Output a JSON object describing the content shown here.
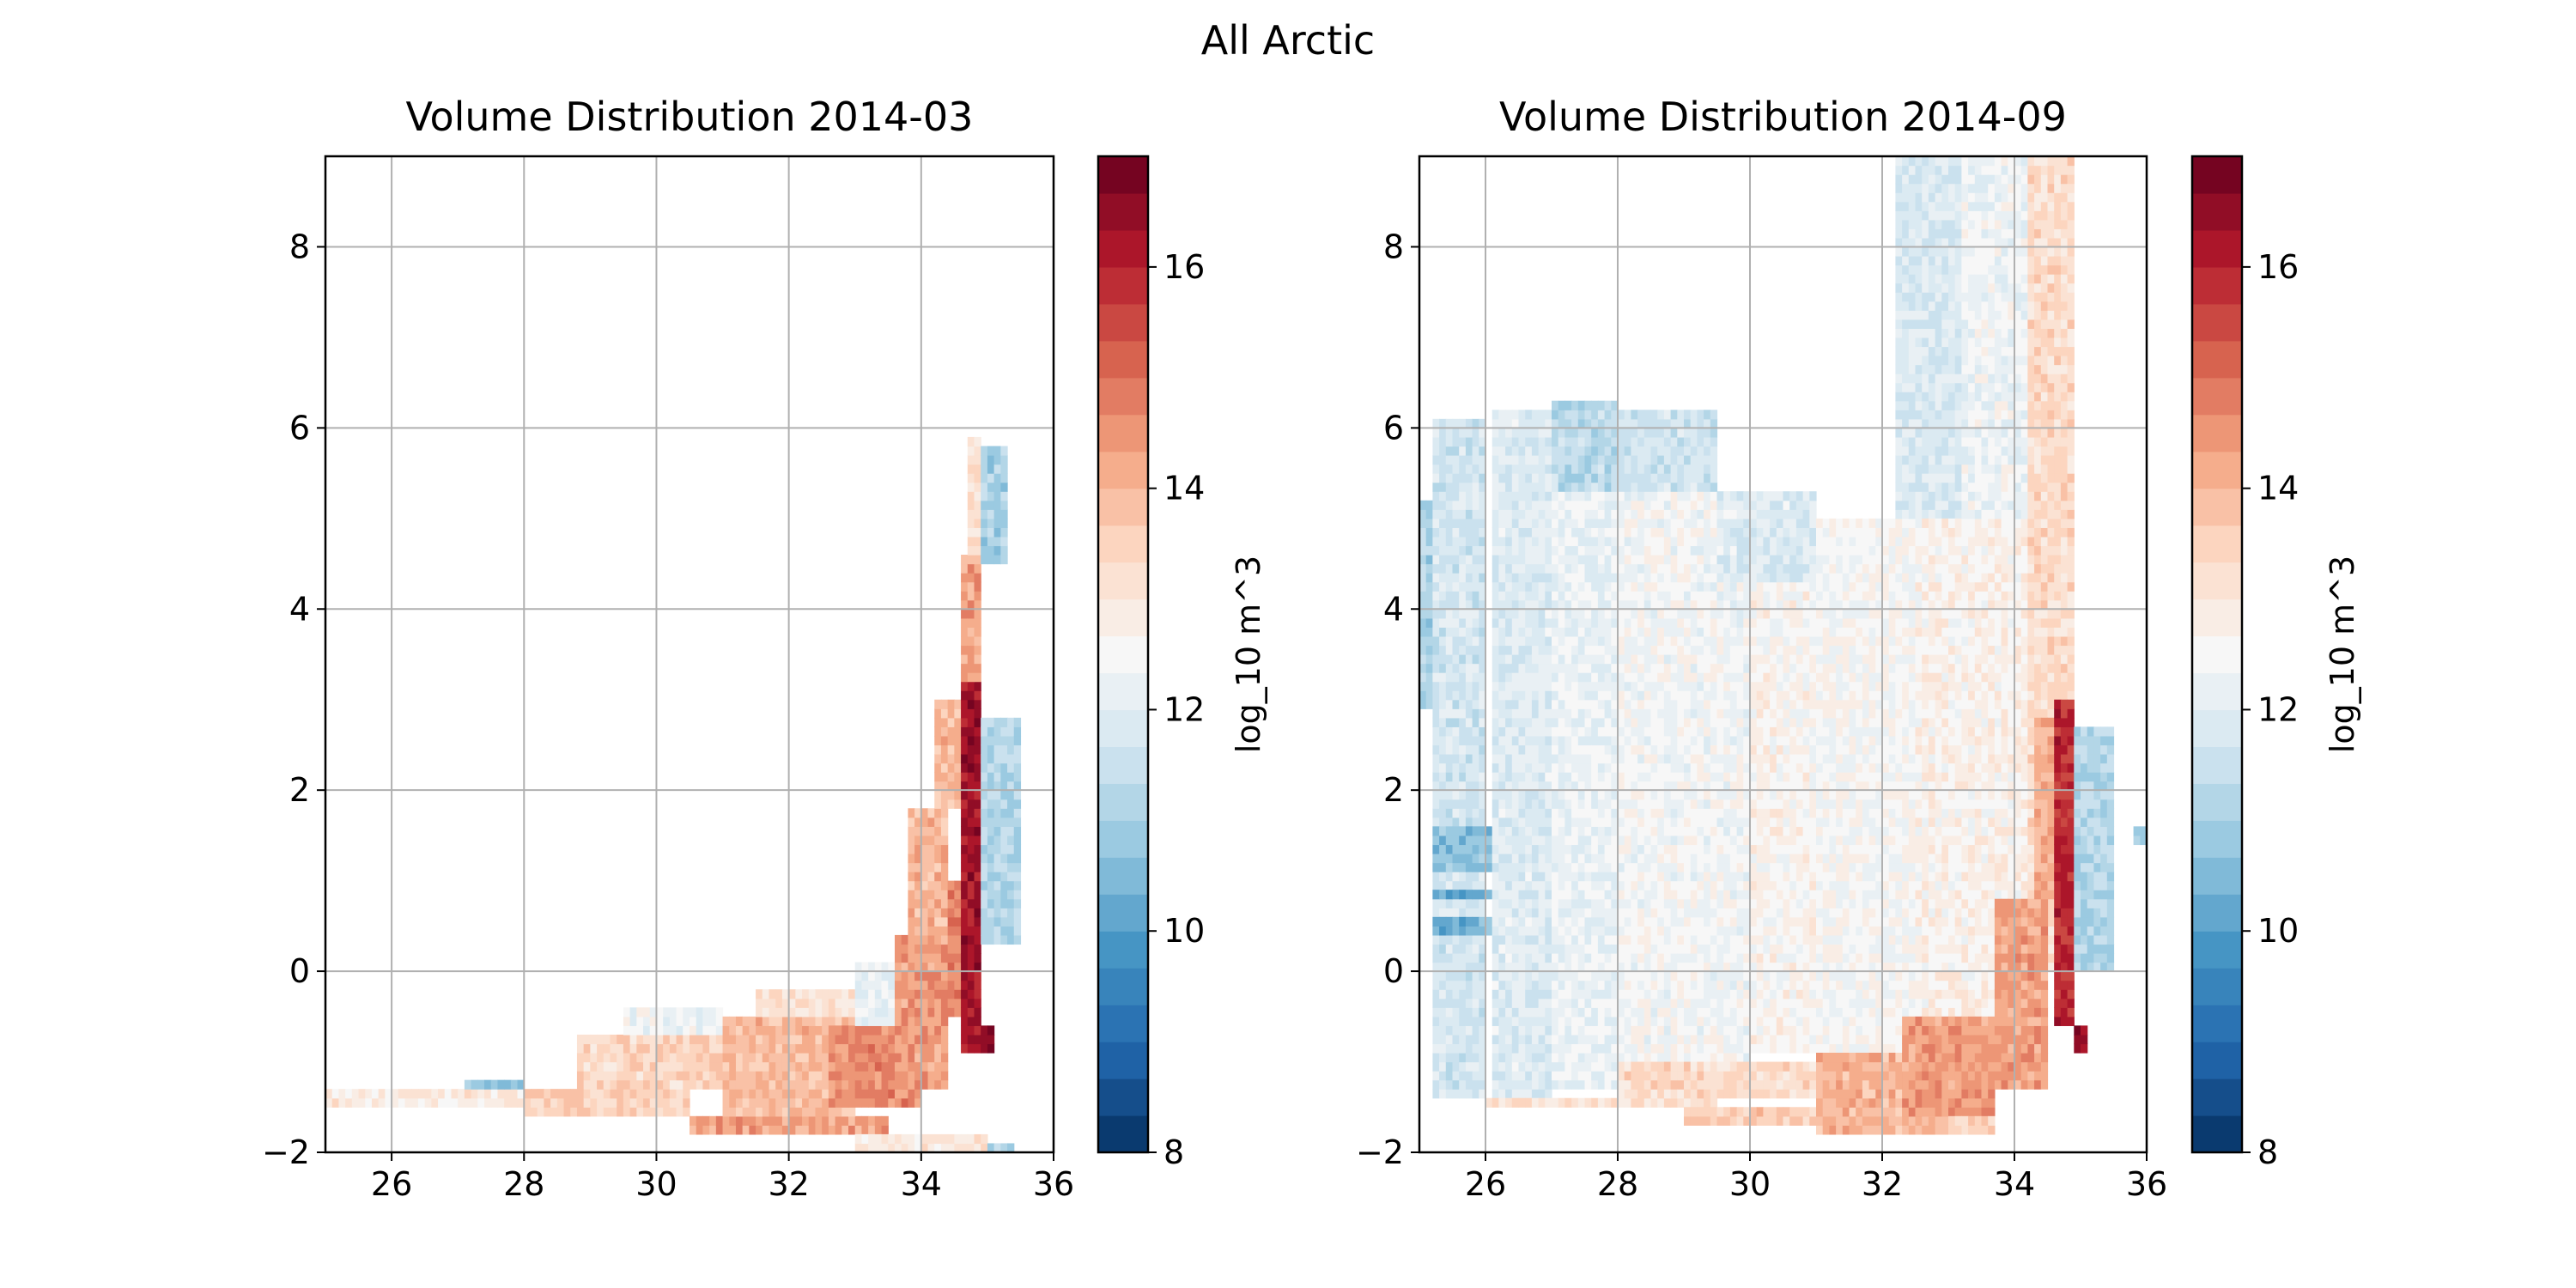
{
  "figure": {
    "suptitle": "All Arctic"
  },
  "colorbar": {
    "label": "log_10 m^3",
    "ticks": [
      8,
      10,
      12,
      14,
      16
    ],
    "range": [
      8,
      17
    ],
    "levels": 27,
    "colormap": "RdBu_r"
  },
  "chart_data": [
    {
      "type": "heatmap",
      "title": "Volume Distribution 2014-03",
      "xlabel": "",
      "ylabel": "",
      "xlim": [
        25,
        36
      ],
      "ylim": [
        -2,
        9
      ],
      "xticks": [
        26,
        28,
        30,
        32,
        34,
        36
      ],
      "yticks": [
        -2,
        0,
        2,
        4,
        6,
        8
      ],
      "grid": true,
      "colorbar_label": "log_10 m^3",
      "cell_size": {
        "x": 0.1,
        "y": 0.1
      },
      "regions": [
        {
          "x": [
            25.0,
            28.9
          ],
          "y": [
            -1.5,
            -1.35
          ],
          "value": 12.9
        },
        {
          "x": [
            27.1,
            28.0
          ],
          "y": [
            -1.35,
            -1.22
          ],
          "value": 10.7
        },
        {
          "x": [
            28.0,
            30.5
          ],
          "y": [
            -1.65,
            -1.3
          ],
          "value": 13.5
        },
        {
          "x": [
            28.8,
            31.0
          ],
          "y": [
            -1.3,
            -0.7
          ],
          "value": 13.4
        },
        {
          "x": [
            29.5,
            31.0
          ],
          "y": [
            -0.7,
            -0.45
          ],
          "value": 12.3
        },
        {
          "x": [
            30.5,
            33.5
          ],
          "y": [
            -1.85,
            -1.6
          ],
          "value": 14.3
        },
        {
          "x": [
            31.0,
            33.0
          ],
          "y": [
            -1.6,
            -0.55
          ],
          "value": 13.9
        },
        {
          "x": [
            31.5,
            33.5
          ],
          "y": [
            -0.55,
            -0.2
          ],
          "value": 13.2
        },
        {
          "x": [
            32.6,
            34.0
          ],
          "y": [
            -1.5,
            -0.6
          ],
          "value": 14.6
        },
        {
          "x": [
            33.0,
            33.6
          ],
          "y": [
            -0.6,
            0.05
          ],
          "value": 12.1
        },
        {
          "x": [
            33.6,
            34.4
          ],
          "y": [
            -1.3,
            0.4
          ],
          "value": 14.4
        },
        {
          "x": [
            33.8,
            34.4
          ],
          "y": [
            0.4,
            1.8
          ],
          "value": 14.0
        },
        {
          "x": [
            34.2,
            34.7
          ],
          "y": [
            1.8,
            3.0
          ],
          "value": 13.9
        },
        {
          "x": [
            34.4,
            34.6
          ],
          "y": [
            -0.5,
            1.0
          ],
          "value": 14.8
        },
        {
          "x": [
            34.6,
            34.9
          ],
          "y": [
            -0.9,
            3.2
          ],
          "value": 16.3
        },
        {
          "x": [
            34.9,
            35.1
          ],
          "y": [
            -0.95,
            -0.6
          ],
          "value": 16.6
        },
        {
          "x": [
            34.6,
            34.9
          ],
          "y": [
            3.2,
            4.6
          ],
          "value": 14.3
        },
        {
          "x": [
            34.7,
            34.9
          ],
          "y": [
            4.6,
            5.9
          ],
          "value": 13.2
        },
        {
          "x": [
            33.0,
            35.0
          ],
          "y": [
            -1.98,
            -1.85
          ],
          "value": 13.0
        },
        {
          "x": [
            35.0,
            35.4
          ],
          "y": [
            -2.0,
            -1.9
          ],
          "value": 11.2
        },
        {
          "x": [
            34.9,
            35.5
          ],
          "y": [
            0.3,
            2.8
          ],
          "value": 11.2
        },
        {
          "x": [
            34.9,
            35.3
          ],
          "y": [
            4.5,
            5.8
          ],
          "value": 11.0
        }
      ]
    },
    {
      "type": "heatmap",
      "title": "Volume Distribution 2014-09",
      "xlabel": "",
      "ylabel": "",
      "xlim": [
        25,
        36
      ],
      "ylim": [
        -2,
        9
      ],
      "xticks": [
        26,
        28,
        30,
        32,
        34,
        36
      ],
      "yticks": [
        -2,
        0,
        2,
        4,
        6,
        8
      ],
      "grid": true,
      "colorbar_label": "log_10 m^3",
      "cell_size": {
        "x": 0.1,
        "y": 0.1
      },
      "regions": [
        {
          "x": [
            25.0,
            25.2
          ],
          "y": [
            2.9,
            5.2
          ],
          "value": 11.1
        },
        {
          "x": [
            25.2,
            26.0
          ],
          "y": [
            -1.4,
            6.1
          ],
          "value": 11.7
        },
        {
          "x": [
            25.2,
            26.1
          ],
          "y": [
            1.1,
            1.65
          ],
          "value": 10.6
        },
        {
          "x": [
            25.2,
            26.1
          ],
          "y": [
            0.75,
            0.95
          ],
          "value": 10.3
        },
        {
          "x": [
            25.2,
            26.1
          ],
          "y": [
            0.4,
            0.55
          ],
          "value": 10.4
        },
        {
          "x": [
            26.1,
            27.0
          ],
          "y": [
            -1.4,
            6.2
          ],
          "value": 11.9
        },
        {
          "x": [
            27.0,
            28.0
          ],
          "y": [
            -1.3,
            6.3
          ],
          "value": 12.2
        },
        {
          "x": [
            27.0,
            28.0
          ],
          "y": [
            5.3,
            6.3
          ],
          "value": 11.3
        },
        {
          "x": [
            28.0,
            30.0
          ],
          "y": [
            -1.0,
            5.3
          ],
          "value": 12.4
        },
        {
          "x": [
            28.0,
            29.5
          ],
          "y": [
            5.3,
            6.2
          ],
          "value": 11.6
        },
        {
          "x": [
            30.0,
            31.5
          ],
          "y": [
            -0.9,
            4.3
          ],
          "value": 12.6
        },
        {
          "x": [
            29.5,
            31.0
          ],
          "y": [
            4.3,
            5.3
          ],
          "value": 11.9
        },
        {
          "x": [
            31.0,
            32.5
          ],
          "y": [
            -1.0,
            5.0
          ],
          "value": 12.5
        },
        {
          "x": [
            32.2,
            33.2
          ],
          "y": [
            5.0,
            9.0
          ],
          "value": 11.8
        },
        {
          "x": [
            32.5,
            34.2
          ],
          "y": [
            -0.6,
            5.0
          ],
          "value": 12.7
        },
        {
          "x": [
            33.2,
            34.5
          ],
          "y": [
            5.0,
            9.0
          ],
          "value": 12.3
        },
        {
          "x": [
            34.2,
            34.9
          ],
          "y": [
            0.0,
            9.0
          ],
          "value": 13.3
        },
        {
          "x": [
            26.0,
            29.5
          ],
          "y": [
            -1.55,
            -1.4
          ],
          "value": 13.2
        },
        {
          "x": [
            28.0,
            31.0
          ],
          "y": [
            -1.4,
            -1.05
          ],
          "value": 13.3
        },
        {
          "x": [
            29.0,
            31.5
          ],
          "y": [
            -1.75,
            -1.55
          ],
          "value": 13.6
        },
        {
          "x": [
            31.0,
            33.0
          ],
          "y": [
            -1.8,
            -0.9
          ],
          "value": 14.0
        },
        {
          "x": [
            32.3,
            33.7
          ],
          "y": [
            -1.6,
            -0.5
          ],
          "value": 14.4
        },
        {
          "x": [
            33.0,
            33.7
          ],
          "y": [
            -1.8,
            -1.6
          ],
          "value": 13.4
        },
        {
          "x": [
            33.7,
            34.5
          ],
          "y": [
            -1.3,
            0.8
          ],
          "value": 14.3
        },
        {
          "x": [
            34.3,
            34.7
          ],
          "y": [
            0.8,
            2.8
          ],
          "value": 14.1
        },
        {
          "x": [
            34.6,
            34.9
          ],
          "y": [
            -0.6,
            3.0
          ],
          "value": 15.9
        },
        {
          "x": [
            34.9,
            35.1
          ],
          "y": [
            -0.95,
            -0.6
          ],
          "value": 16.6
        },
        {
          "x": [
            34.9,
            35.5
          ],
          "y": [
            0.0,
            2.7
          ],
          "value": 11.2
        },
        {
          "x": [
            35.8,
            36.0
          ],
          "y": [
            1.4,
            1.6
          ],
          "value": 11.2
        }
      ]
    }
  ]
}
